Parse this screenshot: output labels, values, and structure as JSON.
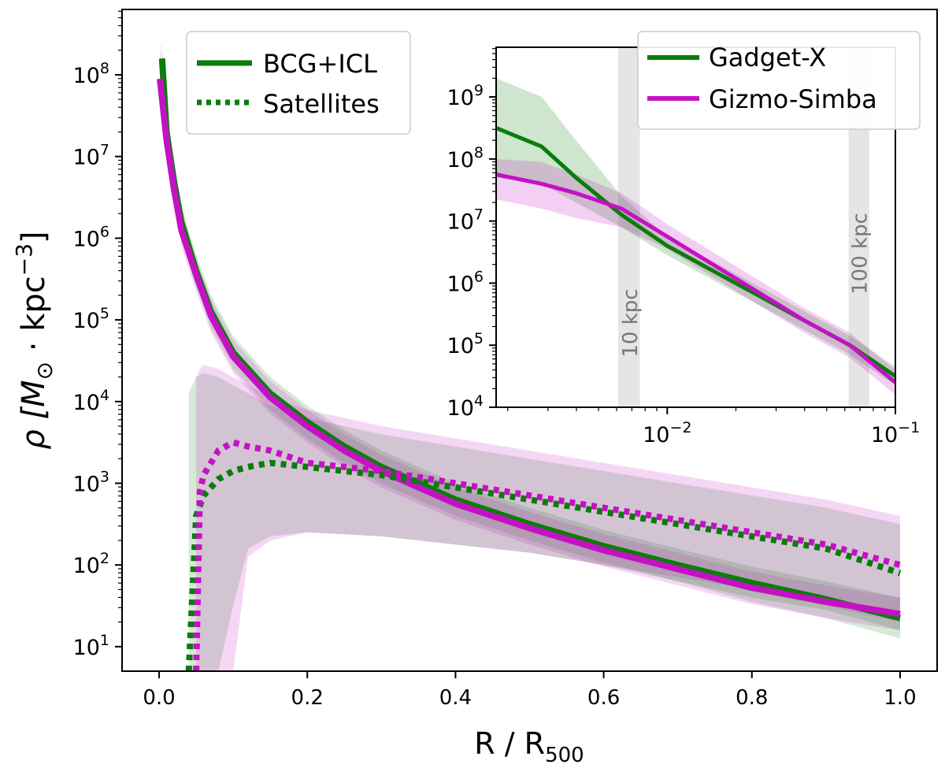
{
  "chart_data": [
    {
      "type": "line",
      "panel": "main",
      "xlabel": "R / R",
      "xlabel_sub": "500",
      "ylabel_math": "ρ [M",
      "ylabel_sub": "⊙",
      "ylabel_rest": " · kpc",
      "ylabel_sup": "−3",
      "ylabel_close": "]",
      "xlim": [
        -0.05,
        1.05
      ],
      "ylim_log10": [
        0.7,
        8.8
      ],
      "yscale": "log",
      "xticks": [
        0.0,
        0.2,
        0.4,
        0.6,
        0.8,
        1.0
      ],
      "xtick_labels": [
        "0.0",
        "0.2",
        "0.4",
        "0.6",
        "0.8",
        "1.0"
      ],
      "yticks_exp": [
        1,
        2,
        3,
        4,
        5,
        6,
        7,
        8
      ],
      "legend": {
        "placement": "top-left",
        "entries": [
          {
            "label": "BCG+ICL",
            "style": "solid"
          },
          {
            "label": "Satellites",
            "style": "dotted"
          }
        ]
      },
      "series": [
        {
          "name": "Gadget-X BCG+ICL",
          "color": "#0a7d0a",
          "style": "solid",
          "x": [
            0.004,
            0.01,
            0.02,
            0.03,
            0.05,
            0.07,
            0.1,
            0.15,
            0.2,
            0.25,
            0.3,
            0.4,
            0.5,
            0.6,
            0.7,
            0.8,
            0.9,
            1.0
          ],
          "y_log10": [
            8.2,
            7.3,
            6.7,
            6.2,
            5.6,
            5.1,
            4.6,
            4.1,
            3.75,
            3.45,
            3.2,
            2.8,
            2.5,
            2.23,
            2.0,
            1.78,
            1.58,
            1.35
          ],
          "band_low_log10": [
            7.9,
            7.1,
            6.5,
            6.0,
            5.4,
            4.9,
            4.4,
            3.9,
            3.55,
            3.25,
            3.0,
            2.6,
            2.3,
            2.03,
            1.8,
            1.55,
            1.35,
            1.1
          ],
          "band_high_log10": [
            8.4,
            7.5,
            6.9,
            6.4,
            5.8,
            5.3,
            4.8,
            4.3,
            3.95,
            3.65,
            3.4,
            3.0,
            2.7,
            2.43,
            2.2,
            1.98,
            1.8,
            1.6
          ]
        },
        {
          "name": "Gizmo-Simba BCG+ICL",
          "color": "#c312c3",
          "style": "solid",
          "x": [
            0.001,
            0.01,
            0.02,
            0.03,
            0.05,
            0.07,
            0.1,
            0.15,
            0.2,
            0.25,
            0.3,
            0.4,
            0.5,
            0.6,
            0.7,
            0.8,
            0.9,
            1.0
          ],
          "y_log10": [
            7.95,
            7.2,
            6.6,
            6.1,
            5.55,
            5.05,
            4.55,
            4.05,
            3.7,
            3.4,
            3.15,
            2.75,
            2.45,
            2.18,
            1.95,
            1.72,
            1.55,
            1.4
          ],
          "band_low_log10": [
            7.7,
            7.0,
            6.4,
            5.9,
            5.35,
            4.85,
            4.35,
            3.85,
            3.5,
            3.2,
            2.95,
            2.55,
            2.25,
            1.98,
            1.75,
            1.52,
            1.35,
            1.2
          ],
          "band_high_log10": [
            8.4,
            7.4,
            6.8,
            6.3,
            5.75,
            5.25,
            4.75,
            4.25,
            3.9,
            3.6,
            3.35,
            2.95,
            2.65,
            2.38,
            2.15,
            1.92,
            1.75,
            1.6
          ]
        },
        {
          "name": "Gadget-X Satellites",
          "color": "#0a7d0a",
          "style": "dotted",
          "x": [
            0.04,
            0.05,
            0.06,
            0.08,
            0.1,
            0.12,
            0.15,
            0.2,
            0.3,
            0.4,
            0.5,
            0.6,
            0.7,
            0.8,
            0.9,
            1.0
          ],
          "y_log10": [
            0.7,
            2.6,
            2.85,
            3.05,
            3.15,
            3.2,
            3.25,
            3.2,
            3.1,
            2.95,
            2.8,
            2.65,
            2.5,
            2.35,
            2.2,
            1.9
          ],
          "band_low_log10": [
            0.7,
            0.7,
            0.7,
            0.7,
            1.5,
            2.2,
            2.35,
            2.4,
            2.35,
            2.25,
            2.15,
            2.0,
            1.8,
            1.6,
            1.45,
            1.2
          ],
          "band_high_log10": [
            4.1,
            4.3,
            4.35,
            4.3,
            4.2,
            4.1,
            3.95,
            3.8,
            3.6,
            3.45,
            3.3,
            3.15,
            3.0,
            2.85,
            2.7,
            2.5
          ]
        },
        {
          "name": "Gizmo-Simba Satellites",
          "color": "#c312c3",
          "style": "dotted",
          "x": [
            0.05,
            0.055,
            0.06,
            0.08,
            0.1,
            0.12,
            0.15,
            0.2,
            0.3,
            0.4,
            0.5,
            0.6,
            0.7,
            0.8,
            0.9,
            1.0
          ],
          "y_log10": [
            0.7,
            2.9,
            3.1,
            3.4,
            3.5,
            3.45,
            3.4,
            3.25,
            3.15,
            3.0,
            2.85,
            2.7,
            2.55,
            2.4,
            2.25,
            2.0
          ],
          "band_low_log10": [
            0.7,
            0.7,
            0.7,
            0.7,
            0.7,
            2.1,
            2.3,
            2.4,
            2.35,
            2.25,
            2.15,
            2.0,
            1.85,
            1.7,
            1.5,
            1.3
          ],
          "band_high_log10": [
            4.3,
            4.4,
            4.45,
            4.4,
            4.3,
            4.2,
            4.05,
            3.9,
            3.7,
            3.55,
            3.4,
            3.25,
            3.1,
            2.95,
            2.8,
            2.6
          ]
        }
      ]
    },
    {
      "type": "line",
      "panel": "inset",
      "xscale": "log",
      "yscale": "log",
      "xlim_log10": [
        -2.75,
        -1.0
      ],
      "ylim_log10": [
        4.0,
        9.8
      ],
      "xticks_exp": [
        -2,
        -1
      ],
      "yticks_exp": [
        4,
        5,
        6,
        7,
        8,
        9
      ],
      "vbands": [
        {
          "label": "10 kpc",
          "x_range_log10": [
            -2.215,
            -2.12
          ]
        },
        {
          "label": "100 kpc",
          "x_range_log10": [
            -1.205,
            -1.115
          ]
        }
      ],
      "legend": {
        "placement": "top-right",
        "entries": [
          {
            "label": "Gadget-X",
            "color": "#0a7d0a"
          },
          {
            "label": "Gizmo-Simba",
            "color": "#c312c3"
          }
        ]
      },
      "series": [
        {
          "name": "Gadget-X",
          "color": "#0a7d0a",
          "x_log10": [
            -2.75,
            -2.55,
            -2.4,
            -2.2,
            -2.0,
            -1.8,
            -1.6,
            -1.4,
            -1.2,
            -1.0
          ],
          "y_log10": [
            8.5,
            8.2,
            7.7,
            7.1,
            6.6,
            6.2,
            5.8,
            5.4,
            5.0,
            4.5
          ],
          "band_low_log10": [
            7.7,
            7.6,
            7.3,
            6.9,
            6.45,
            6.05,
            5.65,
            5.25,
            4.85,
            4.35
          ],
          "band_high_log10": [
            9.3,
            9.0,
            8.3,
            7.4,
            6.75,
            6.35,
            5.95,
            5.55,
            5.15,
            4.65
          ]
        },
        {
          "name": "Gizmo-Simba",
          "color": "#c312c3",
          "x_log10": [
            -2.75,
            -2.55,
            -2.4,
            -2.2,
            -2.0,
            -1.8,
            -1.6,
            -1.4,
            -1.2,
            -1.0
          ],
          "y_log10": [
            7.75,
            7.6,
            7.45,
            7.2,
            6.75,
            6.3,
            5.85,
            5.4,
            5.0,
            4.4
          ],
          "band_low_log10": [
            7.35,
            7.2,
            7.05,
            6.9,
            6.55,
            6.1,
            5.65,
            5.2,
            4.8,
            4.2
          ],
          "band_high_log10": [
            8.0,
            7.95,
            7.75,
            7.45,
            6.95,
            6.5,
            6.05,
            5.6,
            5.2,
            4.6
          ]
        }
      ]
    }
  ]
}
